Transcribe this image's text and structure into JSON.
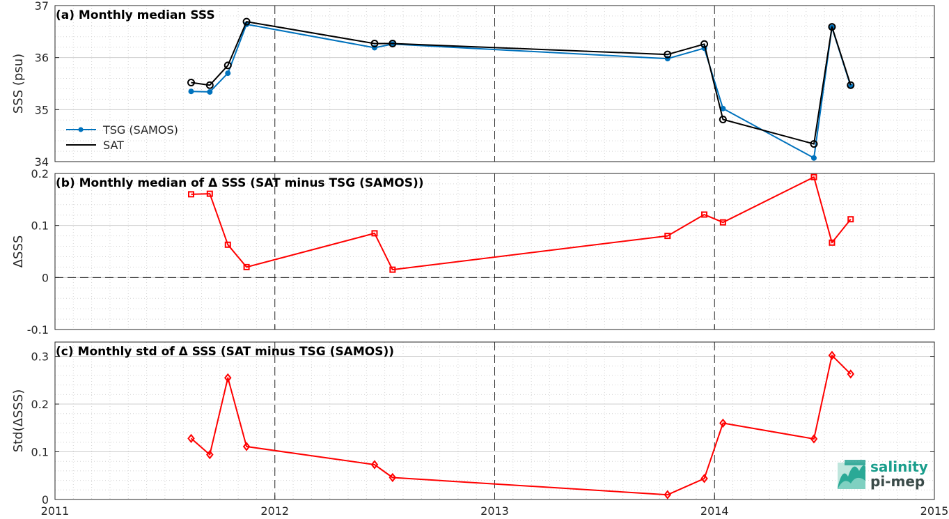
{
  "colors": {
    "tsg": "#0072BD",
    "sat": "#000000",
    "delta": "#FF0000",
    "logo_teal": "#1a9e8c",
    "logo_dark": "#3a4a48"
  },
  "logo": {
    "line1": "salinity",
    "line2": "pi-mep"
  },
  "chart_data": [
    {
      "type": "line",
      "title": "(a) Monthly median SSS",
      "ylabel": "SSS (psu)",
      "xlim": [
        "2011-01-01",
        "2015-01-01"
      ],
      "ylim": [
        34,
        37
      ],
      "yticks": [
        34,
        35,
        36,
        37
      ],
      "ytick_labels": [
        "34",
        "35",
        "36",
        "37"
      ],
      "grid": true,
      "legend": "bottom-left",
      "series": [
        {
          "name": "TSG (SAMOS)",
          "marker": "dot",
          "x": [
            "2011-08-15",
            "2011-09-15",
            "2011-10-15",
            "2011-11-15",
            "2012-06-15",
            "2012-07-15",
            "2013-10-15",
            "2013-12-15",
            "2014-01-15",
            "2014-06-15",
            "2014-07-15",
            "2014-08-15"
          ],
          "values": [
            35.35,
            35.34,
            35.7,
            36.64,
            36.19,
            36.26,
            35.98,
            36.18,
            35.02,
            34.07,
            36.58,
            35.45
          ]
        },
        {
          "name": "SAT",
          "marker": "circle",
          "x": [
            "2011-08-15",
            "2011-09-15",
            "2011-10-15",
            "2011-11-15",
            "2012-06-15",
            "2012-07-15",
            "2013-10-15",
            "2013-12-15",
            "2014-01-15",
            "2014-06-15",
            "2014-07-15",
            "2014-08-15"
          ],
          "values": [
            35.52,
            35.47,
            35.85,
            36.69,
            36.27,
            36.27,
            36.06,
            36.26,
            34.81,
            34.34,
            36.59,
            35.47
          ]
        }
      ]
    },
    {
      "type": "line",
      "title": "(b) Monthly median of Δ SSS (SAT minus TSG (SAMOS))",
      "ylabel": "ΔSSS",
      "xlim": [
        "2011-01-01",
        "2015-01-01"
      ],
      "ylim": [
        -0.1,
        0.2
      ],
      "yticks": [
        -0.1,
        0,
        0.1,
        0.2
      ],
      "ytick_labels": [
        "-0.1",
        "0",
        "0.1",
        "0.2"
      ],
      "zero_line": true,
      "grid": true,
      "series": [
        {
          "marker": "square",
          "x": [
            "2011-08-15",
            "2011-09-15",
            "2011-10-15",
            "2011-11-15",
            "2012-06-15",
            "2012-07-15",
            "2013-10-15",
            "2013-12-15",
            "2014-01-15",
            "2014-06-15",
            "2014-07-15",
            "2014-08-15"
          ],
          "values": [
            0.16,
            0.161,
            0.063,
            0.02,
            0.085,
            0.015,
            0.08,
            0.121,
            0.106,
            0.193,
            0.067,
            0.112
          ]
        }
      ]
    },
    {
      "type": "line",
      "title": "(c) Monthly std of Δ SSS (SAT minus TSG (SAMOS))",
      "ylabel": "Std(ΔSSS)",
      "xlabel": "",
      "xlim": [
        "2011-01-01",
        "2015-01-01"
      ],
      "ylim": [
        0,
        0.33
      ],
      "yticks": [
        0,
        0.1,
        0.2,
        0.3
      ],
      "ytick_labels": [
        "0",
        "0.1",
        "0.2",
        "0.3"
      ],
      "xticks": [
        "2011",
        "2012",
        "2013",
        "2014",
        "2015"
      ],
      "grid": true,
      "series": [
        {
          "marker": "diamond",
          "x": [
            "2011-08-15",
            "2011-09-15",
            "2011-10-15",
            "2011-11-15",
            "2012-06-15",
            "2012-07-15",
            "2013-10-15",
            "2013-12-15",
            "2014-01-15",
            "2014-06-15",
            "2014-07-15",
            "2014-08-15"
          ],
          "values": [
            0.128,
            0.094,
            0.255,
            0.111,
            0.073,
            0.046,
            0.01,
            0.044,
            0.16,
            0.127,
            0.302,
            0.263
          ]
        }
      ]
    }
  ]
}
